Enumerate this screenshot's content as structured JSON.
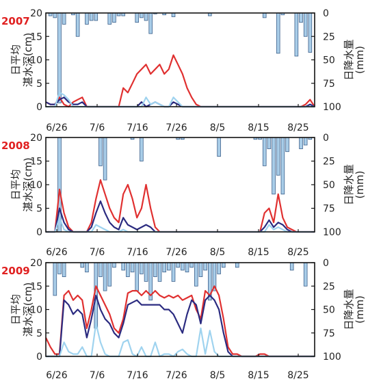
{
  "left_axis_label_line1": "日平均",
  "left_axis_label_line2": "湛水深(cm)",
  "right_axis_label": "日降水量",
  "right_axis_unit": "(mm)",
  "colors": {
    "year_label": "#e02020",
    "bar_fill": "#a9cde8",
    "bar_stroke": "#3b5f8a",
    "line_red": "#e03030",
    "line_navy": "#2b2b80",
    "line_light": "#9fd3ef"
  },
  "chart_data": [
    {
      "type": "bar",
      "year": "2007",
      "x_tick_labels": [
        "6/26",
        "7/6",
        "7/16",
        "7/26",
        "8/5",
        "8/15",
        "8/25"
      ],
      "left_ylim": [
        0,
        20
      ],
      "left_yticks": [
        "0",
        "5",
        "10",
        "15",
        "20"
      ],
      "right_ylim": [
        0,
        100
      ],
      "right_yticks": [
        "0",
        "25",
        "50",
        "75",
        "100"
      ],
      "right_axis_inverted": true,
      "rain_mm": [
        0,
        3,
        5,
        96,
        12,
        0,
        2,
        25,
        0,
        12,
        8,
        8,
        0,
        0,
        12,
        10,
        3,
        3,
        0,
        0,
        10,
        5,
        8,
        22,
        1,
        0,
        2,
        0,
        4,
        0,
        0,
        0,
        0,
        0,
        0,
        0,
        3,
        0,
        0,
        0,
        0,
        0,
        0,
        0,
        0,
        0,
        0,
        0,
        5,
        0,
        0,
        43,
        2,
        0,
        0,
        46,
        10,
        25,
        42,
        0
      ],
      "series": [
        {
          "name": "red",
          "values": [
            1,
            0.5,
            0.5,
            2,
            0.5,
            0,
            1,
            1.5,
            2,
            0,
            0,
            0,
            0,
            0,
            0,
            0,
            0,
            4,
            3,
            5,
            7,
            8,
            9,
            7,
            8,
            9,
            7,
            8,
            11,
            9,
            7,
            4,
            2,
            0.5,
            0,
            0,
            0,
            0,
            0,
            0,
            0,
            0,
            0,
            0,
            0,
            0,
            0,
            0,
            0,
            0,
            0,
            0,
            0,
            0,
            0,
            0,
            0,
            0.5,
            1.5,
            0
          ]
        },
        {
          "name": "navy",
          "values": [
            1,
            0.5,
            0.5,
            1.5,
            2,
            1,
            0.5,
            0.5,
            1,
            0,
            0,
            0,
            0,
            0,
            0,
            0,
            0,
            0,
            0,
            0,
            0,
            1,
            0,
            0.5,
            1,
            0.5,
            0,
            0,
            1,
            0.5,
            0,
            0,
            0,
            0,
            0,
            0,
            0,
            0,
            0,
            0,
            0,
            0,
            0,
            0,
            0,
            0,
            0,
            0,
            0,
            0,
            0,
            0,
            0,
            0,
            0,
            0,
            0,
            0,
            0.5,
            0
          ]
        },
        {
          "name": "light",
          "values": [
            0,
            0,
            0,
            3,
            2.5,
            1.5,
            0,
            0,
            0,
            0,
            0,
            0,
            0,
            0,
            0,
            0,
            0,
            0,
            0,
            0,
            0,
            0,
            2,
            0.5,
            1,
            0.5,
            0,
            0,
            2,
            1,
            0,
            0,
            0,
            0,
            0,
            0,
            0,
            0,
            0,
            0,
            0,
            0,
            0,
            0,
            0,
            0,
            0,
            0,
            0,
            0,
            0,
            0,
            0,
            0,
            0,
            0,
            0,
            0,
            0,
            0
          ]
        }
      ]
    },
    {
      "type": "bar",
      "year": "2008",
      "x_tick_labels": [
        "6/26",
        "7/6",
        "7/16",
        "7/26",
        "8/5",
        "8/15",
        "8/25"
      ],
      "left_ylim": [
        0,
        20
      ],
      "left_yticks": [
        "0",
        "5",
        "10",
        "15",
        "20"
      ],
      "right_ylim": [
        0,
        100
      ],
      "right_axis_inverted": true,
      "right_yticks": [
        "0",
        "25",
        "50",
        "75",
        "100"
      ],
      "rain_mm": [
        0,
        0,
        0,
        100,
        0,
        0,
        0,
        0,
        0,
        0,
        0,
        0,
        30,
        45,
        0,
        0,
        0,
        0,
        0,
        2,
        0,
        25,
        0,
        0,
        0,
        0,
        0,
        0,
        0,
        2,
        2,
        0,
        0,
        0,
        0,
        0,
        0,
        0,
        20,
        0,
        0,
        0,
        0,
        0,
        0,
        0,
        2,
        2,
        30,
        12,
        60,
        40,
        60,
        15,
        0,
        0,
        12,
        8,
        2,
        0
      ],
      "series": [
        {
          "name": "red",
          "values": [
            0,
            0,
            0,
            9,
            4,
            1,
            0,
            0,
            0,
            0,
            2,
            7,
            11,
            8,
            5,
            3,
            2,
            8,
            10,
            7,
            3,
            5,
            10,
            5,
            1,
            0,
            0,
            0,
            0,
            0,
            0,
            0,
            0,
            0,
            0,
            0,
            0,
            0,
            0,
            0,
            0,
            0,
            0,
            0,
            0,
            0,
            0,
            0,
            4,
            5,
            2,
            8,
            3,
            1,
            0.5,
            0,
            0,
            0,
            0,
            0
          ]
        },
        {
          "name": "navy",
          "values": [
            0,
            0,
            0,
            5,
            2,
            0.5,
            0,
            0,
            0,
            0,
            1,
            4,
            6.5,
            4,
            2,
            1,
            0.5,
            3,
            1.5,
            1,
            0.5,
            1,
            1.5,
            1,
            0,
            0,
            0,
            0,
            0,
            0,
            0,
            0,
            0,
            0,
            0,
            0,
            0,
            0,
            0,
            0,
            0,
            0,
            0,
            0,
            0,
            0,
            0,
            0,
            1,
            2.5,
            1,
            2,
            1.5,
            0.5,
            0,
            0,
            0,
            0,
            0,
            0
          ]
        },
        {
          "name": "light",
          "values": [
            0,
            0,
            0,
            3,
            0.5,
            0,
            0,
            0,
            0,
            0,
            0,
            1.5,
            1,
            0.5,
            0,
            0,
            0,
            0.5,
            0,
            0,
            0,
            0,
            0,
            0,
            0,
            0,
            0,
            0,
            0,
            0,
            0,
            0,
            0,
            0,
            0,
            0,
            0,
            0,
            0,
            0,
            0,
            0,
            0,
            0,
            0,
            0,
            0,
            0,
            0,
            1.5,
            0.5,
            1,
            0.5,
            0,
            0,
            0,
            0,
            0,
            0,
            0
          ]
        }
      ]
    },
    {
      "type": "bar",
      "year": "2009",
      "x_tick_labels": [
        "6/26",
        "7/6",
        "7/16",
        "7/26",
        "8/5",
        "8/15",
        "8/25"
      ],
      "left_ylim": [
        0,
        20
      ],
      "left_yticks": [
        "0",
        "5",
        "10",
        "15",
        "20"
      ],
      "right_ylim": [
        0,
        100
      ],
      "right_axis_inverted": true,
      "right_yticks": [
        "0",
        "25",
        "50",
        "75",
        "100"
      ],
      "rain_mm": [
        0,
        0,
        35,
        12,
        15,
        0,
        0,
        0,
        5,
        10,
        0,
        70,
        15,
        30,
        25,
        5,
        0,
        8,
        15,
        10,
        30,
        12,
        20,
        40,
        15,
        20,
        10,
        8,
        20,
        5,
        8,
        10,
        5,
        25,
        15,
        8,
        40,
        30,
        12,
        5,
        0,
        0,
        5,
        0,
        0,
        0,
        0,
        0,
        0,
        0,
        0,
        0,
        0,
        0,
        8,
        0,
        0,
        25,
        0,
        0
      ],
      "series": [
        {
          "name": "red",
          "values": [
            4,
            2,
            0.5,
            0.5,
            13,
            14,
            12,
            13,
            12,
            6,
            10,
            15,
            13,
            11,
            9,
            6,
            5,
            8,
            13.5,
            14,
            14,
            13,
            14,
            13,
            14,
            13,
            12.5,
            13,
            12.5,
            13,
            12,
            12.5,
            13,
            10,
            8,
            14,
            13,
            15,
            13,
            8,
            2,
            0.5,
            0.5,
            0,
            0,
            0,
            0,
            0.5,
            0.5,
            0,
            0,
            0,
            0,
            0,
            0,
            0,
            0,
            0,
            0,
            0
          ]
        },
        {
          "name": "navy",
          "values": [
            0,
            0,
            0,
            0,
            12,
            11,
            9,
            10,
            9,
            4,
            8,
            13,
            10,
            8,
            7,
            5,
            4,
            7,
            11,
            11.5,
            12,
            11,
            11,
            11,
            11,
            11,
            10,
            10,
            9,
            7,
            5,
            9,
            12,
            11,
            7,
            12,
            13,
            12,
            10,
            5,
            1,
            0,
            0,
            0,
            0,
            0,
            0,
            0,
            0,
            0,
            0,
            0,
            0,
            0,
            0,
            0,
            0,
            0,
            0,
            0
          ]
        },
        {
          "name": "light",
          "values": [
            0,
            0,
            0,
            0,
            3,
            1,
            0.5,
            0.5,
            2,
            0,
            0,
            7,
            3,
            0.5,
            0,
            0,
            0,
            3,
            3.5,
            0.5,
            0,
            2,
            0,
            0,
            3,
            0,
            0.5,
            0.5,
            0,
            1,
            1.5,
            0.5,
            0,
            0,
            6,
            0.5,
            5.5,
            1,
            0,
            0,
            0,
            0,
            0,
            0,
            0,
            0,
            0,
            0,
            0,
            0,
            0,
            0,
            0,
            0,
            0,
            0,
            0,
            0,
            0,
            0
          ]
        }
      ]
    }
  ]
}
